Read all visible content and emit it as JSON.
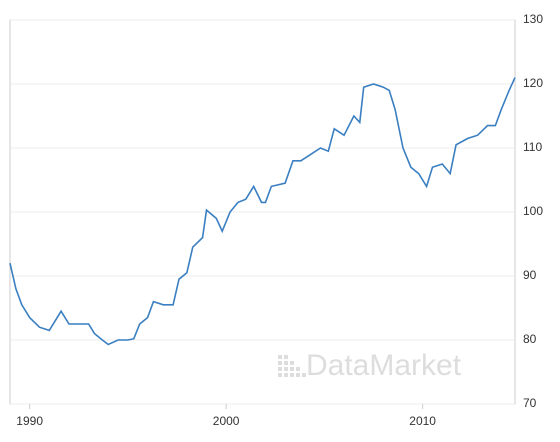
{
  "chart_data": {
    "type": "line",
    "watermark": "DataMarket",
    "x": [
      1989.0,
      1989.3,
      1989.6,
      1990.0,
      1990.5,
      1991.0,
      1991.3,
      1991.6,
      1992.0,
      1992.5,
      1993.0,
      1993.3,
      1993.7,
      1994.0,
      1994.5,
      1995.0,
      1995.3,
      1995.6,
      1996.0,
      1996.3,
      1996.8,
      1997.3,
      1997.6,
      1998.0,
      1998.3,
      1998.8,
      1999.0,
      1999.5,
      1999.8,
      2000.2,
      2000.6,
      2001.0,
      2001.4,
      2001.8,
      2002.0,
      2002.3,
      2003.0,
      2003.4,
      2003.8,
      2004.3,
      2004.8,
      2005.2,
      2005.5,
      2006.0,
      2006.5,
      2006.8,
      2007.0,
      2007.5,
      2008.0,
      2008.3,
      2008.6,
      2009.0,
      2009.4,
      2009.8,
      2010.2,
      2010.5,
      2011.0,
      2011.4,
      2011.7,
      2012.3,
      2012.8,
      2013.3,
      2013.7,
      2014.0,
      2014.4,
      2014.7
    ],
    "series": [
      {
        "color": "#3a7fc1",
        "values": [
          92,
          88,
          85.5,
          83.5,
          82,
          81.5,
          83,
          84.5,
          82.5,
          82.5,
          82.5,
          81,
          80,
          79.3,
          80,
          80,
          80.2,
          82.5,
          83.5,
          86,
          85.5,
          85.5,
          89.5,
          90.5,
          94.5,
          96,
          100.3,
          99,
          97,
          100,
          101.5,
          102,
          104,
          101.5,
          101.5,
          104,
          104.5,
          108,
          108,
          109,
          110,
          109.5,
          113,
          112,
          115,
          114,
          119.5,
          120,
          119.5,
          119,
          116,
          110,
          107,
          106,
          104,
          107,
          107.5,
          106,
          110.5,
          111.5,
          112,
          113.5,
          113.5,
          116,
          119,
          121
        ]
      }
    ],
    "xlim": [
      1989,
      2014.7
    ],
    "xticks": [
      1990,
      2000,
      2010
    ],
    "ylim": [
      70,
      130
    ],
    "yticks": [
      70,
      80,
      90,
      100,
      110,
      120,
      130
    ],
    "grid": true
  }
}
